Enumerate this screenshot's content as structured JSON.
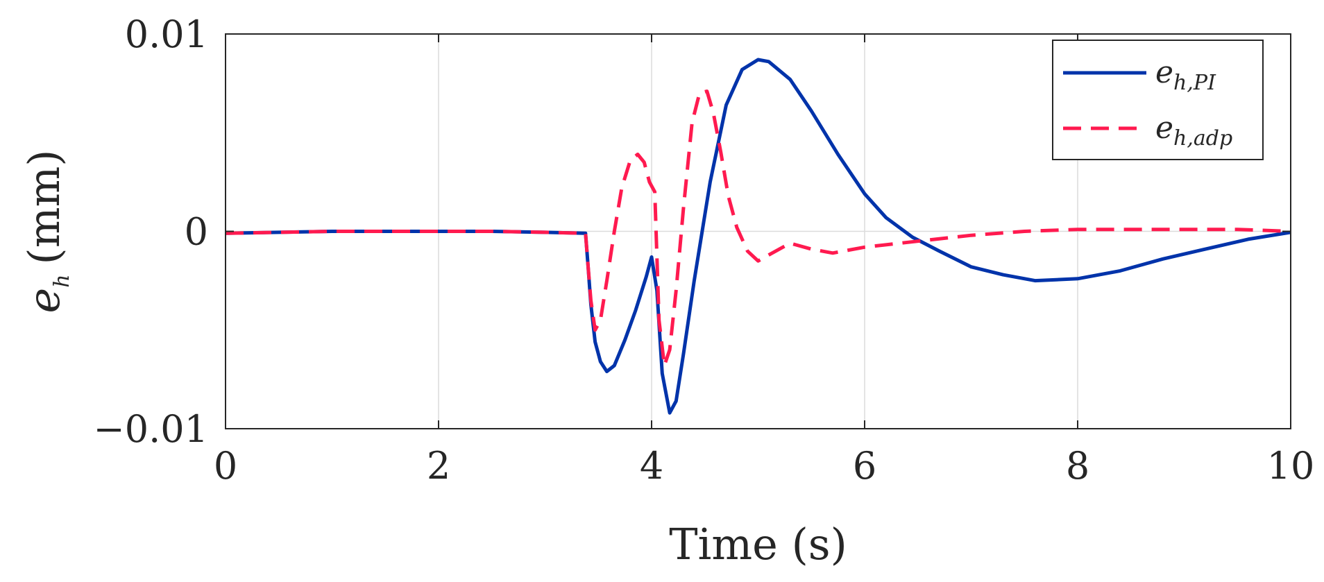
{
  "chart_data": {
    "type": "line",
    "xlabel": "Time (s)",
    "ylabel": {
      "main": "e",
      "sub": "h",
      "unit": "(mm)"
    },
    "xlim": [
      0,
      10
    ],
    "ylim": [
      -0.01,
      0.01
    ],
    "xticks": [
      0,
      2,
      4,
      6,
      8,
      10
    ],
    "xtick_labels": [
      "0",
      "2",
      "4",
      "6",
      "8",
      "10"
    ],
    "yticks": [
      -0.01,
      0,
      0.01
    ],
    "ytick_labels": [
      "−0.01",
      "0",
      "0.01"
    ],
    "grid": true,
    "legend_position": "top-right",
    "series": [
      {
        "name": "e_{h,PI}",
        "legend_main": "e",
        "legend_sub": "h,PI",
        "color": "#0033aa",
        "style": "solid",
        "x": [
          0,
          0.5,
          1,
          1.5,
          2,
          2.5,
          3,
          3.38,
          3.4,
          3.43,
          3.47,
          3.52,
          3.58,
          3.65,
          3.75,
          3.85,
          3.95,
          4.0,
          4.05,
          4.1,
          4.17,
          4.23,
          4.3,
          4.4,
          4.55,
          4.7,
          4.85,
          5.0,
          5.1,
          5.3,
          5.5,
          5.75,
          6.0,
          6.2,
          6.45,
          6.7,
          7.0,
          7.3,
          7.6,
          8.0,
          8.4,
          8.8,
          9.2,
          9.6,
          10.0
        ],
        "y": [
          -0.0001,
          -5e-05,
          0,
          0,
          0,
          0,
          -5e-05,
          -0.0001,
          -0.0015,
          -0.0037,
          -0.0056,
          -0.0066,
          -0.0071,
          -0.0068,
          -0.0055,
          -0.004,
          -0.0023,
          -0.0013,
          -0.003,
          -0.0072,
          -0.0092,
          -0.0086,
          -0.0062,
          -0.0025,
          0.0025,
          0.0064,
          0.0082,
          0.0087,
          0.0086,
          0.0077,
          0.0061,
          0.0039,
          0.0019,
          0.0007,
          -0.0003,
          -0.001,
          -0.0018,
          -0.0022,
          -0.0025,
          -0.0024,
          -0.002,
          -0.0014,
          -0.0009,
          -0.0004,
          -5e-05
        ]
      },
      {
        "name": "e_{h,adp}",
        "legend_main": "e",
        "legend_sub": "h,adp",
        "color": "#ff1a4f",
        "style": "dashed",
        "x": [
          0,
          0.5,
          1,
          1.5,
          2,
          2.5,
          3,
          3.38,
          3.4,
          3.43,
          3.47,
          3.52,
          3.58,
          3.65,
          3.72,
          3.8,
          3.87,
          3.93,
          3.98,
          4.03,
          4.07,
          4.12,
          4.17,
          4.23,
          4.3,
          4.38,
          4.45,
          4.52,
          4.58,
          4.65,
          4.72,
          4.8,
          4.9,
          5.0,
          5.1,
          5.3,
          5.5,
          5.7,
          6.0,
          6.5,
          7.0,
          7.5,
          8.0,
          8.5,
          9.0,
          9.5,
          10.0
        ],
        "y": [
          -0.0001,
          -5e-05,
          0,
          0,
          0,
          0,
          -5e-05,
          -0.0001,
          -0.0015,
          -0.0035,
          -0.005,
          -0.0045,
          -0.0025,
          0,
          0.0022,
          0.0036,
          0.0039,
          0.0035,
          0.0025,
          0.002,
          -0.0045,
          -0.0068,
          -0.006,
          -0.003,
          0.0012,
          0.0055,
          0.007,
          0.0071,
          0.006,
          0.004,
          0.0018,
          0.0002,
          -0.001,
          -0.0015,
          -0.0012,
          -0.0006,
          -0.0009,
          -0.0011,
          -0.0008,
          -0.0005,
          -0.0002,
          0,
          0.0001,
          0.0001,
          0.0001,
          0.0001,
          0
        ]
      }
    ]
  }
}
